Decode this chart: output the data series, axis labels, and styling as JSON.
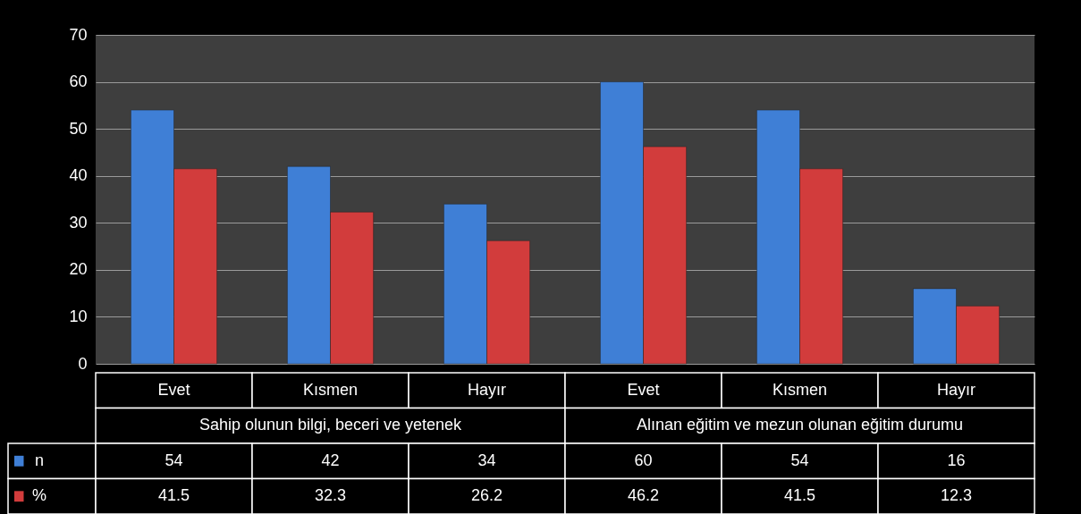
{
  "chart_data": {
    "type": "bar",
    "categories": [
      "Evet",
      "Kısmen",
      "Hayır",
      "Evet",
      "Kısmen",
      "Hayır"
    ],
    "annotations": [
      "Sahip olunun bilgi, beceri ve yetenek",
      "Alınan eğitim ve mezun olunan eğitim durumu"
    ],
    "series": [
      {
        "name": "n",
        "color": "#3f7fd6",
        "values": [
          54,
          42,
          34,
          60,
          54,
          16
        ]
      },
      {
        "name": "%",
        "color": "#d23c3c",
        "values": [
          41.5,
          32.3,
          26.2,
          46.2,
          41.5,
          12.3
        ]
      }
    ],
    "ylim": [
      0,
      70
    ],
    "yticks": [
      0,
      10,
      20,
      30,
      40,
      50,
      60,
      70
    ],
    "grid": true,
    "data_labels": true,
    "legend": "bottom"
  }
}
